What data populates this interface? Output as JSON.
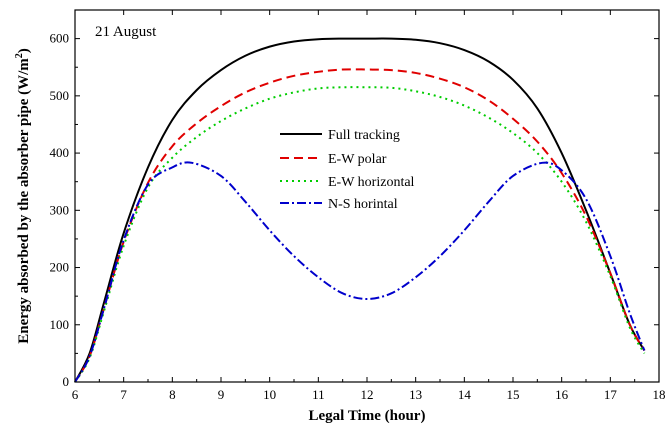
{
  "chart_data": {
    "type": "line",
    "annotation": "21 August",
    "xlabel": "Legal Time (hour)",
    "ylabel": "Energy absorbed by the absorber pipe (W/m",
    "ylabel_sup": "2",
    "ylabel_close": ")",
    "xlim": [
      6,
      18
    ],
    "ylim": [
      0,
      650
    ],
    "xticks": [
      6,
      7,
      8,
      9,
      10,
      11,
      12,
      13,
      14,
      15,
      16,
      17,
      18
    ],
    "yticks": [
      0,
      100,
      200,
      300,
      400,
      500,
      600
    ],
    "grid": false,
    "legend_position": "center",
    "series": [
      {
        "name": "Full tracking",
        "color": "#000000",
        "style": "solid",
        "x": [
          6.0,
          6.3,
          6.6,
          7.0,
          7.5,
          8.0,
          8.5,
          9.0,
          9.5,
          10.0,
          10.5,
          11.0,
          11.5,
          12.0,
          12.5,
          13.0,
          13.5,
          14.0,
          14.5,
          15.0,
          15.5,
          16.0,
          16.5,
          17.0,
          17.4,
          17.7
        ],
        "y": [
          0,
          50,
          140,
          260,
          375,
          458,
          510,
          545,
          570,
          586,
          595,
          599,
          600,
          600,
          600,
          598,
          592,
          580,
          560,
          528,
          478,
          400,
          300,
          190,
          100,
          55
        ]
      },
      {
        "name": "E-W polar",
        "color": "#e00000",
        "style": "dashed",
        "x": [
          6.0,
          6.3,
          6.6,
          7.0,
          7.5,
          8.0,
          8.5,
          9.0,
          9.5,
          10.0,
          10.5,
          11.0,
          11.5,
          12.0,
          12.5,
          13.0,
          13.5,
          14.0,
          14.5,
          15.0,
          15.5,
          16.0,
          16.5,
          17.0,
          17.4,
          17.7
        ],
        "y": [
          0,
          45,
          130,
          245,
          348,
          412,
          452,
          482,
          506,
          523,
          535,
          542,
          546,
          546,
          545,
          540,
          530,
          515,
          492,
          460,
          420,
          365,
          290,
          190,
          100,
          55
        ]
      },
      {
        "name": "E-W horizontal",
        "color": "#00cc00",
        "style": "dotted",
        "x": [
          6.0,
          6.3,
          6.6,
          7.0,
          7.5,
          8.0,
          8.5,
          9.0,
          9.5,
          10.0,
          10.5,
          11.0,
          11.5,
          12.0,
          12.5,
          13.0,
          13.5,
          14.0,
          14.5,
          15.0,
          15.5,
          16.0,
          16.5,
          17.0,
          17.4,
          17.7
        ],
        "y": [
          0,
          42,
          125,
          238,
          340,
          392,
          428,
          456,
          478,
          495,
          506,
          513,
          515,
          515,
          514,
          508,
          498,
          483,
          462,
          435,
          400,
          350,
          280,
          185,
          95,
          50
        ]
      },
      {
        "name": "N-S horintal",
        "color": "#0000cc",
        "style": "dashdot",
        "x": [
          6.0,
          6.3,
          6.6,
          7.0,
          7.5,
          8.0,
          8.4,
          9.0,
          9.5,
          10.0,
          10.5,
          11.0,
          11.5,
          12.0,
          12.5,
          13.0,
          13.5,
          14.0,
          14.5,
          15.0,
          15.6,
          16.0,
          16.5,
          17.0,
          17.4,
          17.7
        ],
        "y": [
          0,
          45,
          130,
          248,
          345,
          375,
          383,
          360,
          315,
          265,
          220,
          183,
          155,
          145,
          155,
          183,
          220,
          265,
          315,
          360,
          383,
          370,
          320,
          220,
          120,
          55
        ]
      }
    ]
  }
}
